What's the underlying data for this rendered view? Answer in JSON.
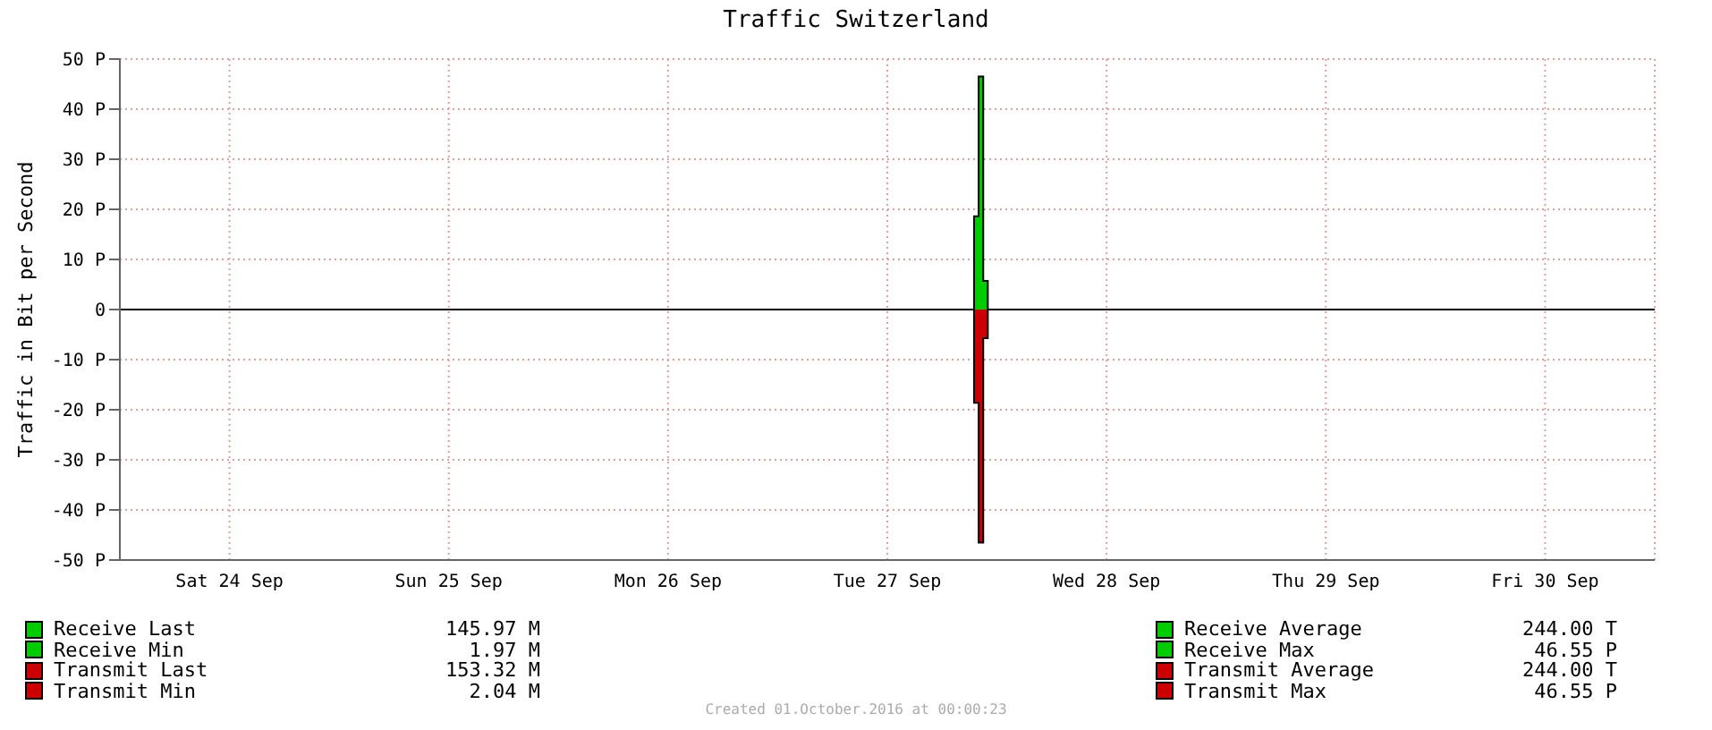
{
  "chart_data": {
    "type": "area",
    "title": "Traffic Switzerland",
    "ylabel": "Traffic in Bit per Second",
    "x": [
      "2016-09-24T00:00",
      "2016-09-27T21:30",
      "2016-09-27T22:00",
      "2016-09-27T22:30",
      "2016-09-27T23:00",
      "2016-10-01T00:00"
    ],
    "series": [
      {
        "color": "#00cc00",
        "values": [
          0,
          18.6,
          46.5,
          5.7,
          0,
          0
        ]
      },
      {
        "color": "#cc0000",
        "values": [
          0,
          -18.6,
          -46.5,
          -5.7,
          0,
          0
        ]
      }
    ],
    "xlim": [
      "2016-09-24T00:00",
      "2016-10-01T00:00"
    ],
    "xticks": [
      {
        "value": "2016-09-24T12:00",
        "label": "Sat 24 Sep"
      },
      {
        "value": "2016-09-25T12:00",
        "label": "Sun 25 Sep"
      },
      {
        "value": "2016-09-26T12:00",
        "label": "Mon 26 Sep"
      },
      {
        "value": "2016-09-27T12:00",
        "label": "Tue 27 Sep"
      },
      {
        "value": "2016-09-28T12:00",
        "label": "Wed 28 Sep"
      },
      {
        "value": "2016-09-29T12:00",
        "label": "Thu 29 Sep"
      },
      {
        "value": "2016-09-30T12:00",
        "label": "Fri 30 Sep"
      }
    ],
    "ylim": [
      -50,
      50
    ],
    "yticks": [
      {
        "value": -50,
        "label": "-50 P"
      },
      {
        "value": -40,
        "label": "-40 P"
      },
      {
        "value": -30,
        "label": "-30 P"
      },
      {
        "value": -20,
        "label": "-20 P"
      },
      {
        "value": -10,
        "label": "-10 P"
      },
      0,
      {
        "value": 10,
        "label": "10 P"
      },
      {
        "value": 20,
        "label": "20 P"
      },
      {
        "value": 30,
        "label": "30 P"
      },
      {
        "value": 40,
        "label": "40 P"
      },
      {
        "value": 50,
        "label": "50 P"
      }
    ],
    "grid": true,
    "annotations": [
      "Receive Last",
      "145.97 M",
      "Receive Min",
      "1.97 M",
      "Transmit Last",
      "153.32 M",
      "Transmit Min",
      "2.04 M",
      "Receive Average",
      "244.00 T",
      "Receive Max",
      "46.55 P",
      "Transmit Average",
      "244.00 T",
      "Transmit Max",
      "46.55 P",
      "Created 01.October.2016 at 00:00:23"
    ]
  }
}
